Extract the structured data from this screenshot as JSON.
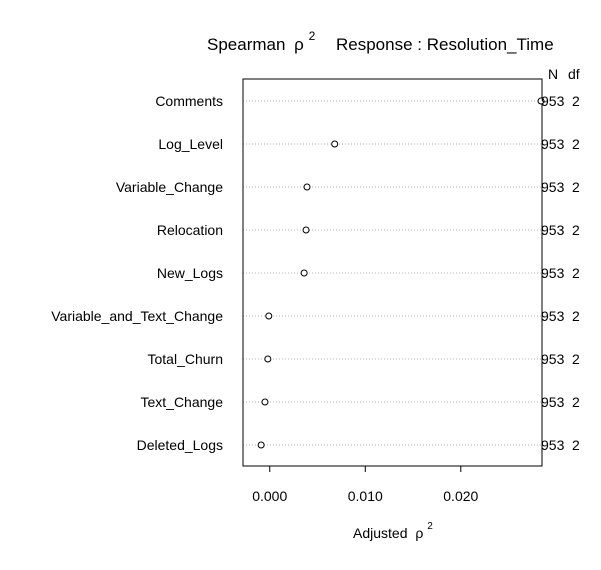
{
  "chart_data": {
    "type": "scatter",
    "title": {
      "left_text": "Spearman",
      "left_symbol": "ρ",
      "left_sup": "2",
      "right_text": "Response : Resolution_Time"
    },
    "xlabel": {
      "text": "Adjusted",
      "symbol": "ρ",
      "sup": "2"
    },
    "ylabel": "",
    "xlim": [
      -0.0028,
      0.0285
    ],
    "x_ticks": [
      0.0,
      0.01,
      0.02
    ],
    "x_tick_labels": [
      "0.000",
      "0.010",
      "0.020"
    ],
    "grid": "dotted horizontal lines per row",
    "right_header": {
      "n": "N",
      "df": "df"
    },
    "rows": [
      {
        "label": "Comments",
        "value": 0.0284,
        "n": "953",
        "df": "2"
      },
      {
        "label": "Log_Level",
        "value": 0.0068,
        "n": "953",
        "df": "2"
      },
      {
        "label": "Variable_Change",
        "value": 0.0039,
        "n": "953",
        "df": "2"
      },
      {
        "label": "Relocation",
        "value": 0.0038,
        "n": "953",
        "df": "2"
      },
      {
        "label": "New_Logs",
        "value": 0.0036,
        "n": "953",
        "df": "2"
      },
      {
        "label": "Variable_and_Text_Change",
        "value": -0.0001,
        "n": "953",
        "df": "2"
      },
      {
        "label": "Total_Churn",
        "value": -0.0002,
        "n": "953",
        "df": "2"
      },
      {
        "label": "Text_Change",
        "value": -0.0005,
        "n": "953",
        "df": "2"
      },
      {
        "label": "Deleted_Logs",
        "value": -0.0009,
        "n": "953",
        "df": "2"
      }
    ]
  }
}
